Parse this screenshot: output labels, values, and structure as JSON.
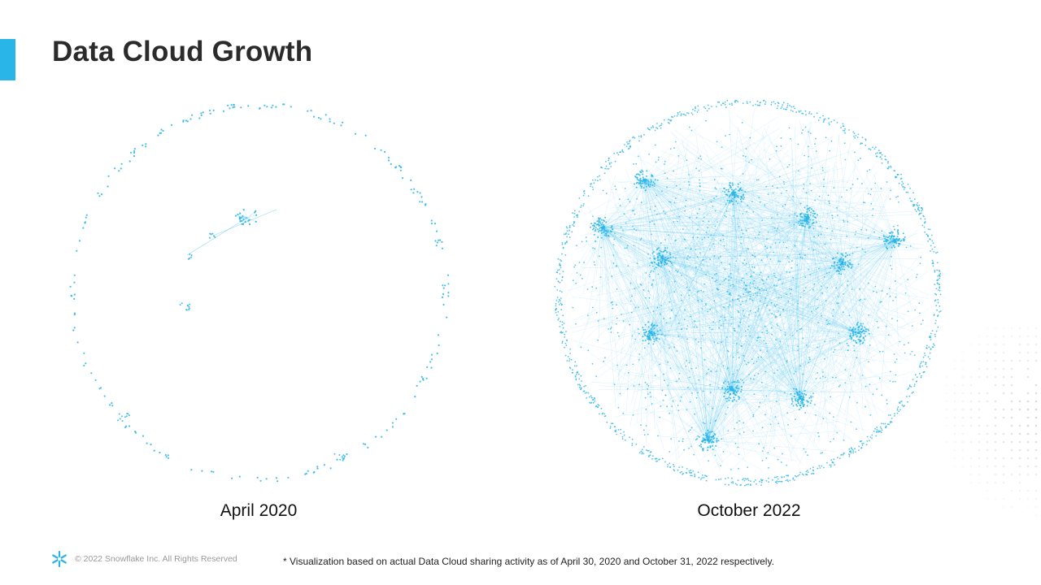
{
  "slide": {
    "title": "Data Cloud Growth",
    "accent_color": "#29b5e8"
  },
  "visualizations": [
    {
      "label": "April 2020",
      "density": "sparse"
    },
    {
      "label": "October 2022",
      "density": "dense"
    }
  ],
  "node_color": "#29b5e8",
  "footer": {
    "logo_icon": "snowflake-icon",
    "copyright": "© 2022 Snowflake Inc. All Rights Reserved",
    "footnote": "* Visualization based on actual Data Cloud sharing activity as of April 30, 2020 and October 31, 2022 respectively."
  }
}
